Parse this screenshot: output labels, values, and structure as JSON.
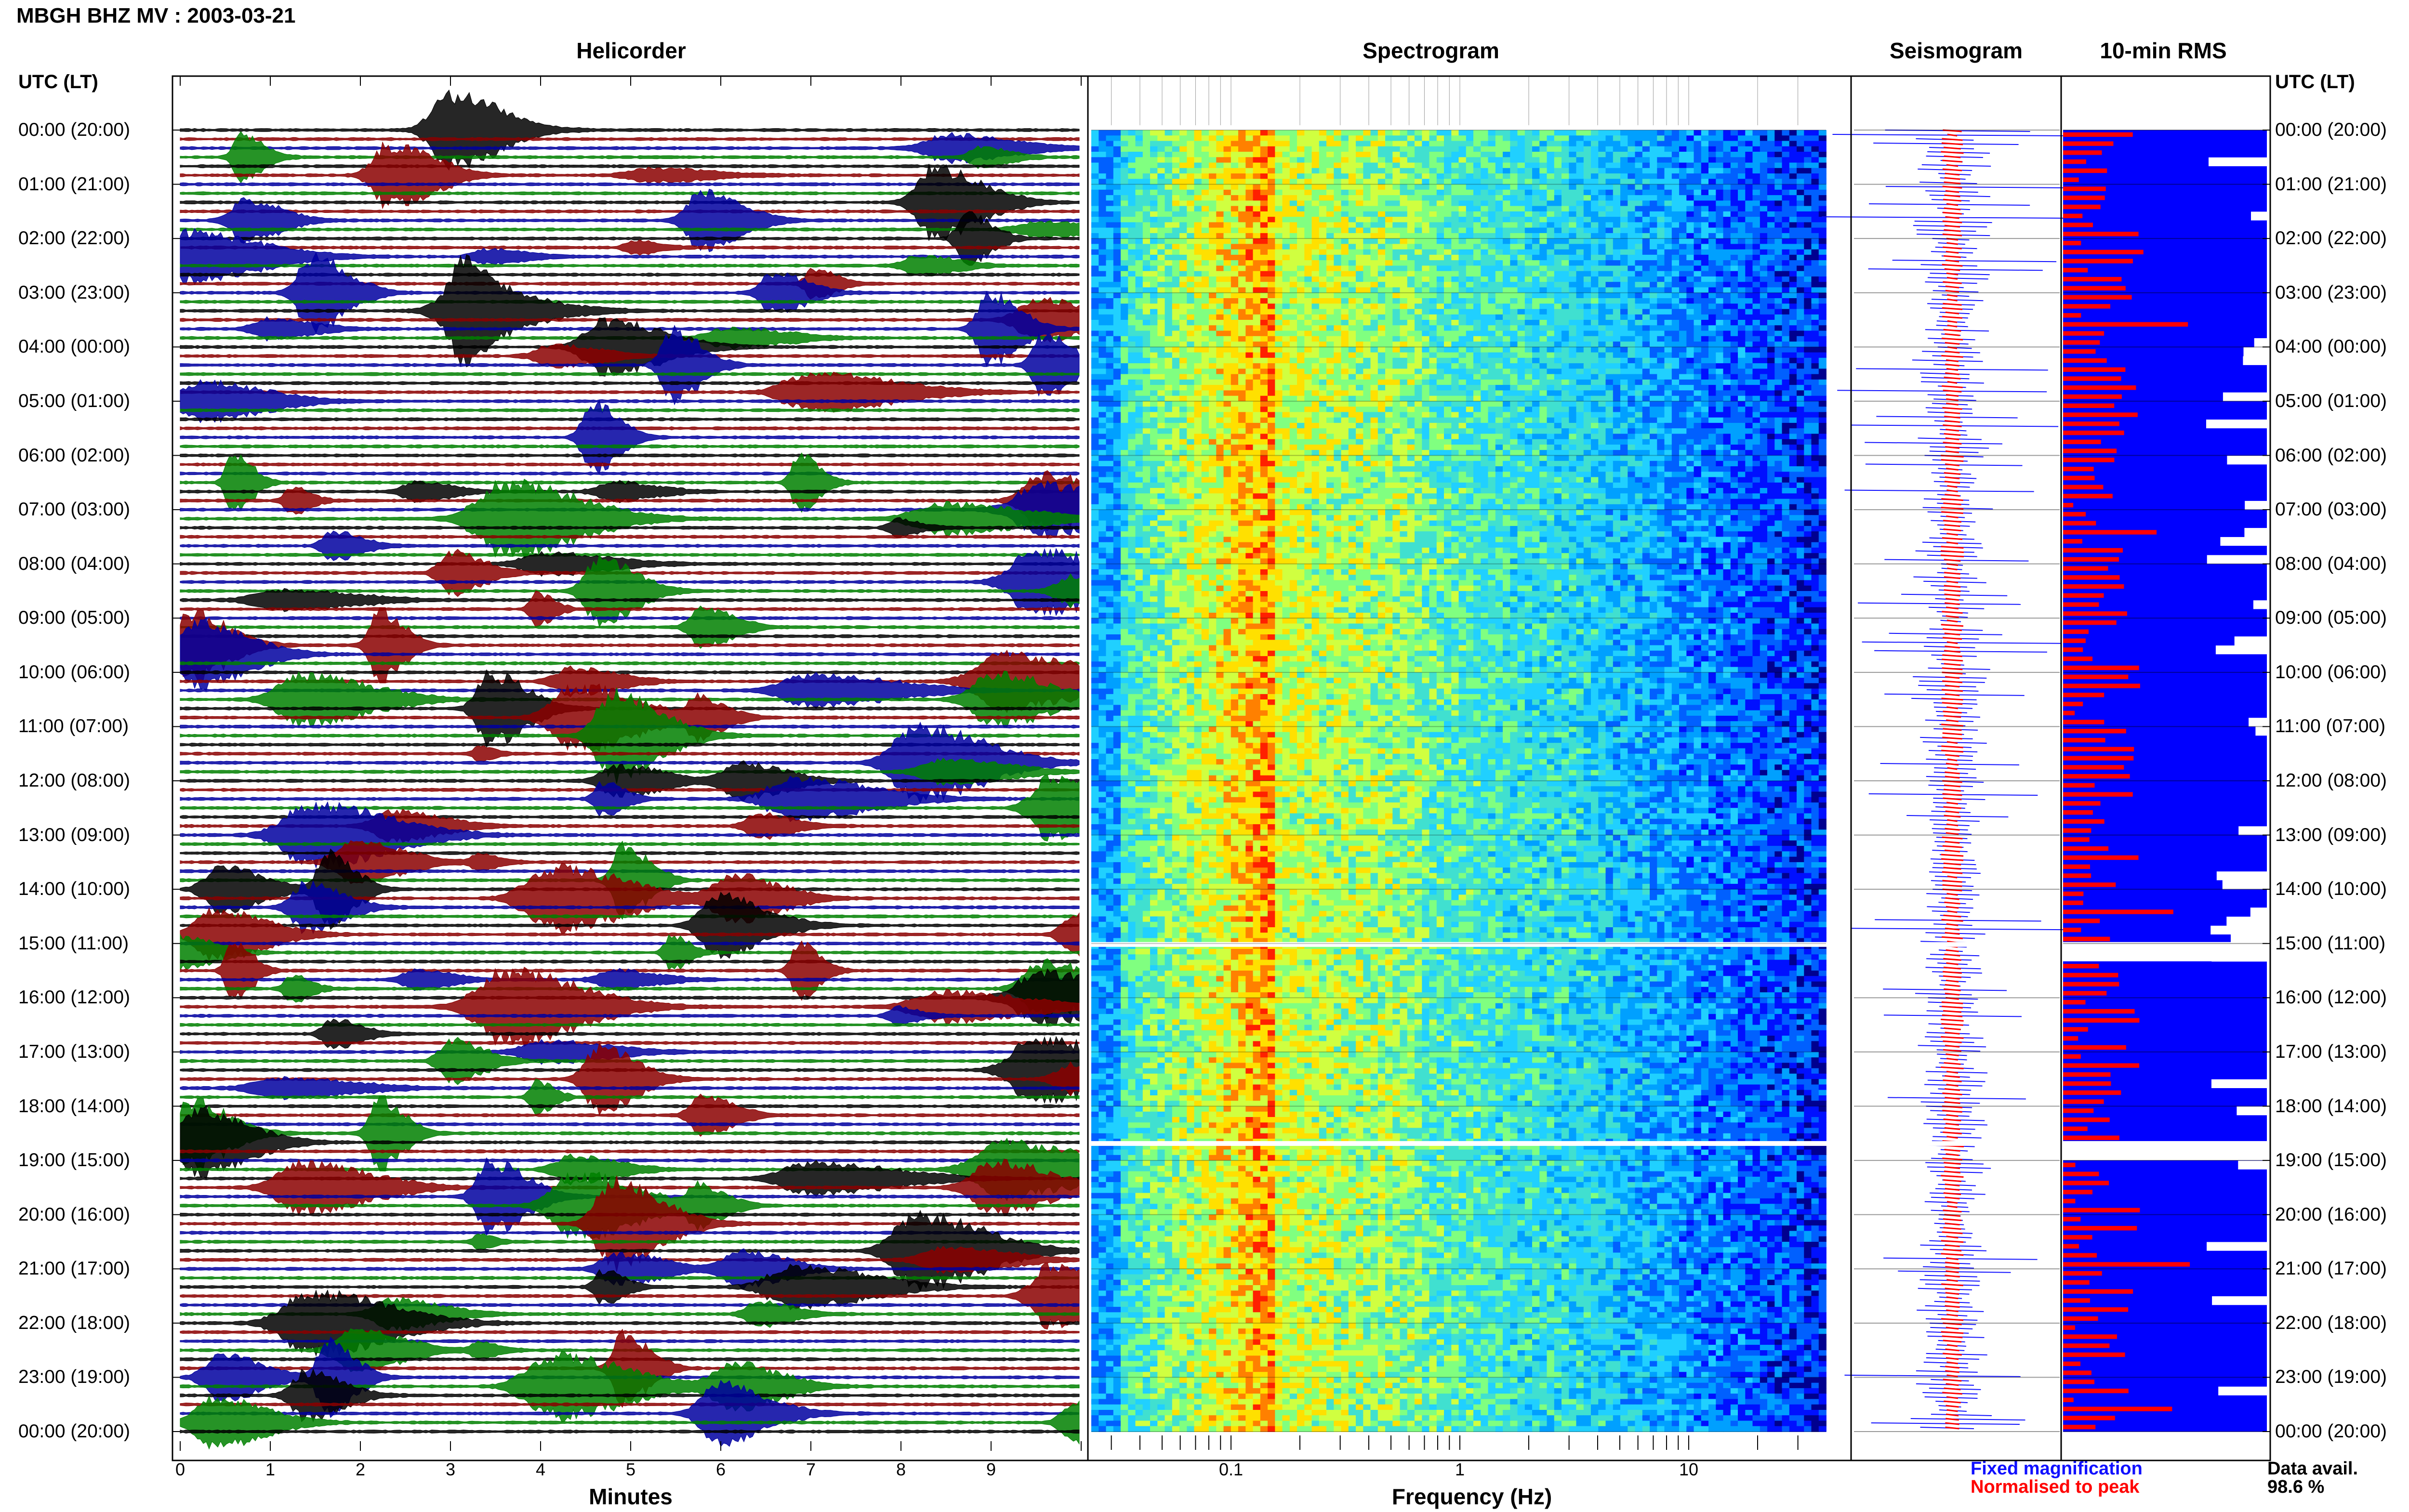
{
  "header": {
    "title": "MBGH BHZ MV : 2003-03-21"
  },
  "panels": {
    "helicorder": "Helicorder",
    "spectrogram": "Spectrogram",
    "seismogram": "Seismogram",
    "rms": "10-min RMS"
  },
  "utc_label": "UTC (LT)",
  "times": [
    "00:00 (20:00)",
    "01:00 (21:00)",
    "02:00 (22:00)",
    "03:00 (23:00)",
    "04:00 (00:00)",
    "05:00 (01:00)",
    "06:00 (02:00)",
    "07:00 (03:00)",
    "08:00 (04:00)",
    "09:00 (05:00)",
    "10:00 (06:00)",
    "11:00 (07:00)",
    "12:00 (08:00)",
    "13:00 (09:00)",
    "14:00 (10:00)",
    "15:00 (11:00)",
    "16:00 (12:00)",
    "17:00 (13:00)",
    "18:00 (14:00)",
    "19:00 (15:00)",
    "20:00 (16:00)",
    "21:00 (17:00)",
    "22:00 (18:00)",
    "23:00 (19:00)",
    "00:00 (20:00)"
  ],
  "helicorder_axis": {
    "ticks": [
      "0",
      "1",
      "2",
      "3",
      "4",
      "5",
      "6",
      "7",
      "8",
      "9"
    ],
    "xlabel": "Minutes"
  },
  "spectrogram_axis": {
    "ticks": [
      "0.1",
      "1",
      "10"
    ],
    "xlabel": "Frequency (Hz)"
  },
  "legend": {
    "fixed": "Fixed magnification",
    "normalised": "Normalised to peak",
    "fixed_color": "#1010ff",
    "normalised_color": "#ff0000"
  },
  "data_avail": {
    "label": "Data avail.",
    "value": "98.6 %"
  },
  "colors": {
    "trace_cycle": [
      "#000000",
      "#8b0000",
      "#0000a0",
      "#008000"
    ],
    "rms_fill": "#0000ff",
    "rms_peak": "#ff0000",
    "seismo_fixed": "#1010ff",
    "seismo_norm": "#ff0000"
  },
  "chart_data": [
    {
      "type": "line",
      "title": "Helicorder",
      "xlabel": "Minutes",
      "xlim": [
        0,
        10
      ],
      "y_categories": [
        "00:00 (20:00)",
        "01:00 (21:00)",
        "02:00 (22:00)",
        "03:00 (23:00)",
        "04:00 (00:00)",
        "05:00 (01:00)",
        "06:00 (02:00)",
        "07:00 (03:00)",
        "08:00 (04:00)",
        "09:00 (05:00)",
        "10:00 (06:00)",
        "11:00 (07:00)",
        "12:00 (08:00)",
        "13:00 (09:00)",
        "14:00 (10:00)",
        "15:00 (11:00)",
        "16:00 (12:00)",
        "17:00 (13:00)",
        "18:00 (14:00)",
        "19:00 (15:00)",
        "20:00 (16:00)",
        "21:00 (17:00)",
        "22:00 (18:00)",
        "23:00 (19:00)",
        "00:00 (20:00)"
      ],
      "traces_per_hour": 6,
      "colors": [
        "#000000",
        "#8b0000",
        "#0000a0",
        "#008000"
      ]
    },
    {
      "type": "heatmap",
      "title": "Spectrogram",
      "xlabel": "Frequency (Hz)",
      "xscale": "log",
      "xlim": [
        0.02,
        40
      ],
      "ticks": [
        0.1,
        1,
        10
      ],
      "data_gaps_utc": [
        "15:00",
        "18:40"
      ]
    },
    {
      "type": "line",
      "title": "Seismogram",
      "series": [
        {
          "name": "Fixed magnification",
          "color": "#1010ff"
        },
        {
          "name": "Normalised to peak",
          "color": "#ff0000"
        }
      ]
    },
    {
      "type": "bar",
      "title": "10-min RMS",
      "orientation": "horizontal",
      "legend": "98.6 %"
    }
  ]
}
